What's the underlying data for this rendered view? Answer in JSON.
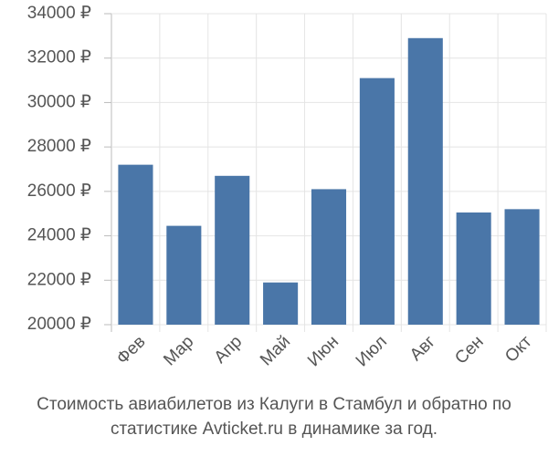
{
  "chart_data": {
    "type": "bar",
    "title": "Стоимость авиабилетов из Калуги в Стамбул и обратно по статистике Avticket.ru в динамике за год.",
    "categories": [
      "Фев",
      "Мар",
      "Апр",
      "Май",
      "Июн",
      "Июл",
      "Авг",
      "Сен",
      "Окт"
    ],
    "values": [
      27200,
      24450,
      26700,
      21900,
      26100,
      31100,
      32900,
      25050,
      25200
    ],
    "color": "#4a76a8",
    "ylim": [
      20000,
      34000
    ],
    "yticks": [
      {
        "value": 20000,
        "label": "20000 ₽"
      },
      {
        "value": 22000,
        "label": "22000 ₽"
      },
      {
        "value": 24000,
        "label": "24000 ₽"
      },
      {
        "value": 26000,
        "label": "26000 ₽"
      },
      {
        "value": 28000,
        "label": "28000 ₽"
      },
      {
        "value": 30000,
        "label": "30000 ₽"
      },
      {
        "value": 32000,
        "label": "32000 ₽"
      },
      {
        "value": 34000,
        "label": "34000 ₽"
      }
    ],
    "grid": true
  }
}
